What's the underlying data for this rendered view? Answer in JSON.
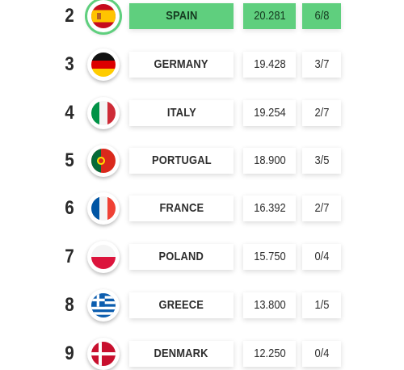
{
  "rows": [
    {
      "rank": "2",
      "country": "SPAIN",
      "points": "20.281",
      "record": "6/8",
      "flag": "spain-flag-icon",
      "highlighted": true
    },
    {
      "rank": "3",
      "country": "GERMANY",
      "points": "19.428",
      "record": "3/7",
      "flag": "germany-flag-icon"
    },
    {
      "rank": "4",
      "country": "ITALY",
      "points": "19.254",
      "record": "2/7",
      "flag": "italy-flag-icon"
    },
    {
      "rank": "5",
      "country": "PORTUGAL",
      "points": "18.900",
      "record": "3/5",
      "flag": "portugal-flag-icon"
    },
    {
      "rank": "6",
      "country": "FRANCE",
      "points": "16.392",
      "record": "2/7",
      "flag": "france-flag-icon"
    },
    {
      "rank": "7",
      "country": "POLAND",
      "points": "15.750",
      "record": "0/4",
      "flag": "poland-flag-icon"
    },
    {
      "rank": "8",
      "country": "GREECE",
      "points": "13.800",
      "record": "1/5",
      "flag": "greece-flag-icon"
    },
    {
      "rank": "9",
      "country": "DENMARK",
      "points": "12.250",
      "record": "0/4",
      "flag": "denmark-flag-icon"
    }
  ],
  "colors": {
    "highlight": "#5fcf7e",
    "text": "#2d2d2d"
  }
}
